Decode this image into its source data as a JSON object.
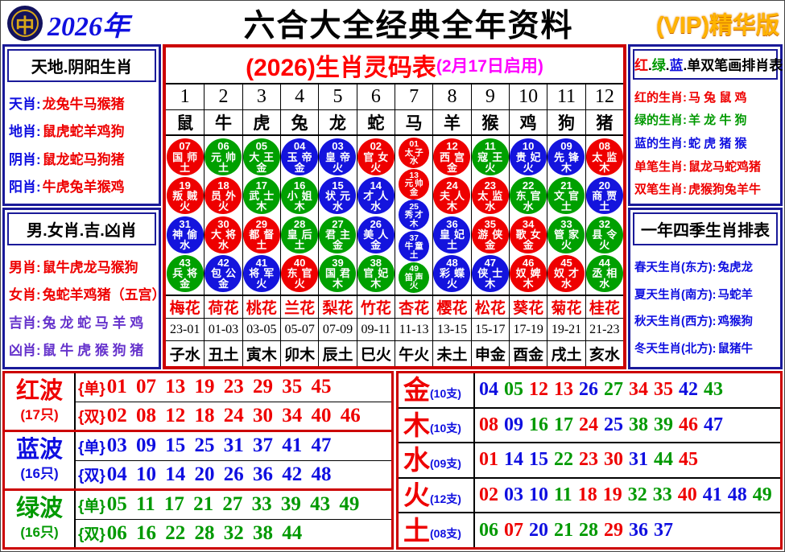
{
  "header": {
    "logo_glyph": "中",
    "year": "2026年",
    "title": "六合大全经典全年资料",
    "vip": "(VIP)精华版"
  },
  "left": {
    "sec1": {
      "title": "天地.阴阳生肖",
      "rows": [
        {
          "label": "天肖",
          "value": "龙兔牛马猴猪",
          "lc": "blue",
          "vc": "red"
        },
        {
          "label": "地肖",
          "value": "鼠虎蛇羊鸡狗",
          "lc": "blue",
          "vc": "red"
        },
        {
          "label": "阴肖",
          "value": "鼠龙蛇马狗猪",
          "lc": "blue",
          "vc": "red"
        },
        {
          "label": "阳肖",
          "value": "牛虎兔羊猴鸡",
          "lc": "blue",
          "vc": "red"
        }
      ]
    },
    "sec2": {
      "title": "男.女肖.吉.凶肖",
      "rows": [
        {
          "label": "男肖",
          "value": "鼠牛虎龙马猴狗",
          "lc": "red",
          "vc": "red"
        },
        {
          "label": "女肖",
          "value": "兔蛇羊鸡猪（五宫）",
          "lc": "red",
          "vc": "red"
        },
        {
          "label": "吉肖",
          "value": "兔 龙 蛇 马 羊 鸡",
          "lc": "purple",
          "vc": "purple"
        },
        {
          "label": "凶肖",
          "value": "鼠 牛 虎 猴 狗 猪",
          "lc": "purple",
          "vc": "purple"
        }
      ]
    }
  },
  "center": {
    "title_main": "(2026)生肖灵码表",
    "title_sub": "(2月17日启用)",
    "columns": [
      {
        "num": "1",
        "zodiac": "鼠",
        "flower": "梅花",
        "time": "23-01",
        "branch": "子水",
        "balls": [
          {
            "n": "07",
            "t": "国师",
            "e": "土"
          },
          {
            "n": "19",
            "t": "叛贼",
            "e": "火"
          },
          {
            "n": "31",
            "t": "神偷",
            "e": "水"
          },
          {
            "n": "43",
            "t": "兵将",
            "e": "金"
          }
        ]
      },
      {
        "num": "2",
        "zodiac": "牛",
        "flower": "荷花",
        "time": "01-03",
        "branch": "丑土",
        "balls": [
          {
            "n": "06",
            "t": "元帅",
            "e": "土"
          },
          {
            "n": "18",
            "t": "员外",
            "e": "火"
          },
          {
            "n": "30",
            "t": "大将",
            "e": "水"
          },
          {
            "n": "42",
            "t": "包公",
            "e": "金"
          }
        ]
      },
      {
        "num": "3",
        "zodiac": "虎",
        "flower": "桃花",
        "time": "03-05",
        "branch": "寅木",
        "balls": [
          {
            "n": "05",
            "t": "大王",
            "e": "金"
          },
          {
            "n": "17",
            "t": "武士",
            "e": "木"
          },
          {
            "n": "29",
            "t": "都督",
            "e": "土"
          },
          {
            "n": "41",
            "t": "将军",
            "e": "火"
          }
        ]
      },
      {
        "num": "4",
        "zodiac": "兔",
        "flower": "兰花",
        "time": "05-07",
        "branch": "卯木",
        "balls": [
          {
            "n": "04",
            "t": "玉帝",
            "e": "金"
          },
          {
            "n": "16",
            "t": "小姐",
            "e": "木"
          },
          {
            "n": "28",
            "t": "皇后",
            "e": "土"
          },
          {
            "n": "40",
            "t": "东官",
            "e": "火"
          }
        ]
      },
      {
        "num": "5",
        "zodiac": "龙",
        "flower": "梨花",
        "time": "07-09",
        "branch": "辰土",
        "balls": [
          {
            "n": "03",
            "t": "皇帝",
            "e": "火"
          },
          {
            "n": "15",
            "t": "状元",
            "e": "水"
          },
          {
            "n": "27",
            "t": "君主",
            "e": "金"
          },
          {
            "n": "39",
            "t": "国君",
            "e": "木"
          }
        ]
      },
      {
        "num": "6",
        "zodiac": "蛇",
        "flower": "竹花",
        "time": "09-11",
        "branch": "巳火",
        "balls": [
          {
            "n": "02",
            "t": "官女",
            "e": "火"
          },
          {
            "n": "14",
            "t": "才人",
            "e": "水"
          },
          {
            "n": "26",
            "t": "美人",
            "e": "金"
          },
          {
            "n": "38",
            "t": "官妃",
            "e": "木"
          }
        ]
      },
      {
        "num": "7",
        "zodiac": "马",
        "flower": "杏花",
        "time": "11-13",
        "branch": "午火",
        "balls": [
          {
            "n": "01",
            "t": "太子",
            "e": "水"
          },
          {
            "n": "13",
            "t": "元帅",
            "e": "金"
          },
          {
            "n": "25",
            "t": "秀才",
            "e": "木"
          },
          {
            "n": "37",
            "t": "牛童",
            "e": "土"
          },
          {
            "n": "49",
            "t": "笛声",
            "e": "火"
          }
        ]
      },
      {
        "num": "8",
        "zodiac": "羊",
        "flower": "樱花",
        "time": "13-15",
        "branch": "未土",
        "balls": [
          {
            "n": "12",
            "t": "西宫",
            "e": "金"
          },
          {
            "n": "24",
            "t": "夫人",
            "e": "木"
          },
          {
            "n": "36",
            "t": "皇妃",
            "e": "土"
          },
          {
            "n": "48",
            "t": "彩蝶",
            "e": "火"
          }
        ]
      },
      {
        "num": "9",
        "zodiac": "猴",
        "flower": "松花",
        "time": "15-17",
        "branch": "申金",
        "balls": [
          {
            "n": "11",
            "t": "寇王",
            "e": "火"
          },
          {
            "n": "23",
            "t": "太监",
            "e": "水"
          },
          {
            "n": "35",
            "t": "游侠",
            "e": "金"
          },
          {
            "n": "47",
            "t": "侠士",
            "e": "木"
          }
        ]
      },
      {
        "num": "10",
        "zodiac": "鸡",
        "flower": "葵花",
        "time": "17-19",
        "branch": "酉金",
        "balls": [
          {
            "n": "10",
            "t": "贵妃",
            "e": "火"
          },
          {
            "n": "22",
            "t": "东官",
            "e": "水"
          },
          {
            "n": "34",
            "t": "歌女",
            "e": "金"
          },
          {
            "n": "46",
            "t": "奴婢",
            "e": "木"
          }
        ]
      },
      {
        "num": "11",
        "zodiac": "狗",
        "flower": "菊花",
        "time": "19-21",
        "branch": "戌土",
        "balls": [
          {
            "n": "09",
            "t": "先锋",
            "e": "木"
          },
          {
            "n": "21",
            "t": "文官",
            "e": "土"
          },
          {
            "n": "33",
            "t": "管家",
            "e": "火"
          },
          {
            "n": "45",
            "t": "奴才",
            "e": "水"
          }
        ]
      },
      {
        "num": "12",
        "zodiac": "猪",
        "flower": "桂花",
        "time": "21-23",
        "branch": "亥水",
        "balls": [
          {
            "n": "08",
            "t": "太监",
            "e": "木"
          },
          {
            "n": "20",
            "t": "商贾",
            "e": "土"
          },
          {
            "n": "32",
            "t": "县令",
            "e": "火"
          },
          {
            "n": "44",
            "t": "丞相",
            "e": "水"
          }
        ]
      }
    ]
  },
  "right": {
    "sec1": {
      "title_parts": [
        {
          "t": "红",
          "c": "red"
        },
        {
          "t": ".",
          "c": "black"
        },
        {
          "t": "绿",
          "c": "green"
        },
        {
          "t": ".",
          "c": "black"
        },
        {
          "t": "蓝",
          "c": "blue"
        },
        {
          "t": ".",
          "c": "black"
        },
        {
          "t": "单双笔画排肖表",
          "c": "black"
        }
      ],
      "rows": [
        {
          "label": "红的生肖",
          "value": "马 兔 鼠 鸡",
          "lc": "red",
          "vc": "red"
        },
        {
          "label": "绿的生肖",
          "value": "羊 龙 牛 狗",
          "lc": "green",
          "vc": "green"
        },
        {
          "label": "蓝的生肖",
          "value": "蛇 虎 猪 猴",
          "lc": "blue",
          "vc": "blue"
        },
        {
          "label": "单笔生肖",
          "value": "鼠龙马蛇鸡猪",
          "lc": "red",
          "vc": "red"
        },
        {
          "label": "双笔生肖",
          "value": "虎猴狗兔羊牛",
          "lc": "red",
          "vc": "red"
        }
      ]
    },
    "sec2": {
      "title": "一年四季生肖排表",
      "rows": [
        {
          "label": "春天生肖(东方)",
          "value": "兔虎龙",
          "lc": "blue",
          "vc": "blue"
        },
        {
          "label": "夏天生肖(南方)",
          "value": "马蛇羊",
          "lc": "blue",
          "vc": "blue"
        },
        {
          "label": "秋天生肖(西方)",
          "value": "鸡猴狗",
          "lc": "blue",
          "vc": "blue"
        },
        {
          "label": "冬天生肖(北方)",
          "value": "鼠猪牛",
          "lc": "blue",
          "vc": "blue"
        }
      ]
    }
  },
  "bottom_left": {
    "odd_label": "{单}",
    "even_label": "{双}",
    "groups": [
      {
        "name": "红波",
        "count": "(17只)",
        "cls": "red",
        "odd": [
          "01",
          "07",
          "13",
          "19",
          "23",
          "29",
          "35",
          "45"
        ],
        "even": [
          "02",
          "08",
          "12",
          "18",
          "24",
          "30",
          "34",
          "40",
          "46"
        ]
      },
      {
        "name": "蓝波",
        "count": "(16只)",
        "cls": "blue",
        "odd": [
          "03",
          "09",
          "15",
          "25",
          "31",
          "37",
          "41",
          "47"
        ],
        "even": [
          "04",
          "10",
          "14",
          "20",
          "26",
          "36",
          "42",
          "48"
        ]
      },
      {
        "name": "绿波",
        "count": "(16只)",
        "cls": "green",
        "odd": [
          "05",
          "11",
          "17",
          "21",
          "27",
          "33",
          "39",
          "43",
          "49"
        ],
        "even": [
          "06",
          "16",
          "22",
          "28",
          "32",
          "38",
          "44"
        ]
      }
    ]
  },
  "bottom_right": {
    "rows": [
      {
        "element": "金",
        "count": "(10支)",
        "numbers": [
          "04",
          "05",
          "12",
          "13",
          "26",
          "27",
          "34",
          "35",
          "42",
          "43"
        ]
      },
      {
        "element": "木",
        "count": "(10支)",
        "numbers": [
          "08",
          "09",
          "16",
          "17",
          "24",
          "25",
          "38",
          "39",
          "46",
          "47"
        ]
      },
      {
        "element": "水",
        "count": "(09支)",
        "numbers": [
          "01",
          "14",
          "15",
          "22",
          "23",
          "30",
          "31",
          "44",
          "45"
        ]
      },
      {
        "element": "火",
        "count": "(12支)",
        "numbers": [
          "02",
          "03",
          "10",
          "11",
          "18",
          "19",
          "32",
          "33",
          "40",
          "41",
          "48",
          "49"
        ]
      },
      {
        "element": "土",
        "count": "(08支)",
        "numbers": [
          "06",
          "07",
          "20",
          "21",
          "28",
          "29",
          "36",
          "37"
        ]
      }
    ]
  },
  "ball_colors": {
    "red": [
      "01",
      "02",
      "07",
      "08",
      "12",
      "13",
      "18",
      "19",
      "23",
      "24",
      "29",
      "30",
      "34",
      "35",
      "40",
      "45",
      "46"
    ],
    "blue": [
      "03",
      "04",
      "09",
      "10",
      "14",
      "15",
      "20",
      "25",
      "26",
      "31",
      "36",
      "37",
      "41",
      "42",
      "47",
      "48"
    ],
    "green": [
      "05",
      "06",
      "11",
      "16",
      "17",
      "21",
      "22",
      "27",
      "28",
      "32",
      "33",
      "38",
      "39",
      "43",
      "44",
      "49"
    ]
  },
  "colors": {
    "red": "#ee0000",
    "blue": "#1414dd",
    "green": "#00a000",
    "navy_border": "#1a1a99",
    "red_border": "#cc0000",
    "magenta": "#ff00ff"
  }
}
